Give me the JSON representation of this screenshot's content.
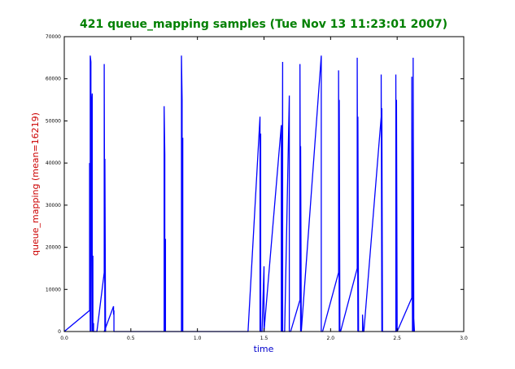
{
  "chart_data": {
    "type": "line",
    "title": "421 queue_mapping samples (Tue Nov 13 11:23:01 2007)",
    "xlabel": "time",
    "ylabel": "queue_mapping (mean=16219)",
    "xlim": [
      0,
      3.0
    ],
    "ylim": [
      0,
      70000
    ],
    "x_ticks": [
      "0.0",
      "0.5",
      "1.0",
      "1.5",
      "2.0",
      "2.5",
      "3.0"
    ],
    "y_ticks": [
      "0",
      "10000",
      "20000",
      "30000",
      "40000",
      "50000",
      "60000",
      "70000"
    ],
    "grid": false,
    "colors": {
      "title": "#008000",
      "xlabel": "#0000cc",
      "ylabel": "#cc0000",
      "line": "#0000ff"
    },
    "series": [
      {
        "x": [
          0.0,
          0.19,
          0.19,
          0.195,
          0.195,
          0.2,
          0.2,
          0.205,
          0.205,
          0.21,
          0.21,
          0.215,
          0.215,
          0.22,
          0.22,
          0.225,
          0.225,
          0.23,
          0.23,
          0.235,
          0.235,
          0.24,
          0.24,
          0.245,
          0.245,
          0.3,
          0.3,
          0.305,
          0.305,
          0.31,
          0.31,
          0.3,
          0.37,
          0.37,
          0.373,
          0.373,
          0.37,
          0.37,
          0.75,
          0.75,
          0.755,
          0.755,
          0.76,
          0.76,
          0.765,
          0.765,
          0.77,
          0.77,
          0.88,
          0.88,
          0.885,
          0.885,
          0.89,
          0.89,
          0.895,
          0.895,
          1.38,
          1.47,
          1.47,
          1.475,
          1.475,
          1.48,
          1.48,
          1.485,
          1.485,
          1.5,
          1.5,
          1.505,
          1.505,
          1.5,
          1.63,
          1.63,
          1.635,
          1.635,
          1.64,
          1.64,
          1.645,
          1.645,
          1.65,
          1.65,
          1.655,
          1.655,
          1.69,
          1.69,
          1.695,
          1.695,
          1.7,
          1.7,
          1.77,
          1.77,
          1.775,
          1.775,
          1.78,
          1.78,
          1.93,
          1.93,
          1.935,
          1.935,
          1.94,
          1.94,
          2.06,
          2.06,
          2.065,
          2.065,
          2.07,
          2.07,
          2.075,
          2.075,
          2.2,
          2.2,
          2.205,
          2.205,
          2.21,
          2.21,
          2.24,
          2.24,
          2.245,
          2.245,
          2.25,
          2.38,
          2.38,
          2.385,
          2.385,
          2.39,
          2.39,
          2.49,
          2.49,
          2.495,
          2.495,
          2.5,
          2.5,
          2.61,
          2.61,
          2.615,
          2.615,
          2.62,
          2.62,
          2.625,
          2.625,
          2.63,
          2.63
        ],
        "y": [
          0,
          5000,
          40000,
          0,
          65500,
          64000,
          0,
          47000,
          54000,
          56500,
          0,
          18000,
          0,
          2000,
          0,
          0,
          0,
          0,
          0,
          0,
          0,
          0,
          0,
          0,
          0,
          14000,
          63500,
          0,
          41000,
          0,
          0,
          0,
          6000,
          4000,
          5000,
          0,
          0,
          0,
          0,
          53500,
          42000,
          0,
          22000,
          0,
          0,
          0,
          0,
          0,
          0,
          65500,
          55000,
          0,
          46000,
          0,
          0,
          0,
          0,
          51000,
          0,
          47000,
          0,
          0,
          0,
          0,
          0,
          15500,
          0,
          0,
          0,
          0,
          49000,
          0,
          6500,
          0,
          64000,
          0,
          0,
          0,
          0,
          0,
          0,
          0,
          56000,
          0,
          0,
          0,
          0,
          0,
          7500,
          63500,
          0,
          44000,
          0,
          0,
          65500,
          0,
          0,
          0,
          0,
          0,
          14000,
          62000,
          0,
          55000,
          0,
          0,
          0,
          0,
          15000,
          65000,
          0,
          51000,
          0,
          0,
          0,
          4000,
          0,
          0,
          0,
          51000,
          61000,
          0,
          53000,
          0,
          0,
          0,
          61000,
          0,
          55000,
          0,
          0,
          8000,
          60500,
          0,
          2500,
          0,
          65000,
          0,
          3000,
          0,
          0
        ]
      }
    ]
  }
}
